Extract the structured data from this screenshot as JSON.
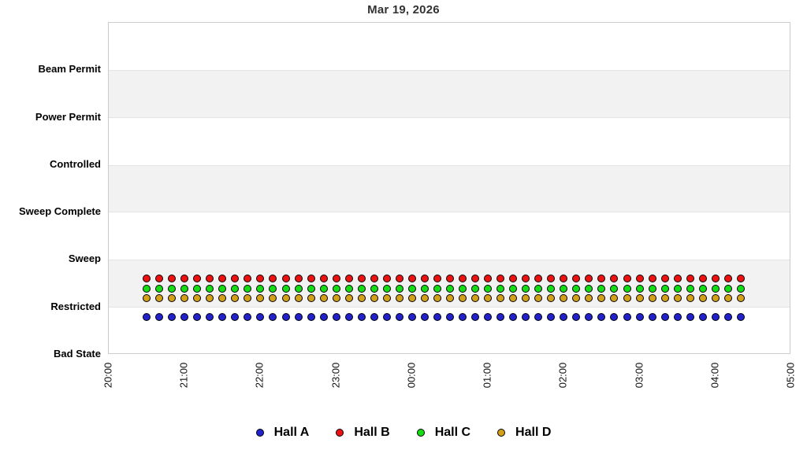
{
  "chart_data": {
    "type": "scatter",
    "title": "Mar 19, 2026",
    "x_axis": {
      "tick_labels": [
        "20:00",
        "21:00",
        "22:00",
        "23:00",
        "00:00",
        "01:00",
        "02:00",
        "03:00",
        "04:00",
        "05:00"
      ],
      "label_rotation_deg": -90
    },
    "y_axis": {
      "categories_bottom_up": [
        "Bad State",
        "Restricted",
        "Sweep",
        "Sweep Complete",
        "Controlled",
        "Power Permit",
        "Beam Permit"
      ]
    },
    "grid": {
      "alternating_bands": true,
      "band_color": "#f2f2f2",
      "border_color": "#cccccc"
    },
    "sampling": {
      "first_point": "20:30",
      "last_point": "04:20",
      "interval_minutes": 10,
      "points_per_series": 48
    },
    "series": [
      {
        "name": "Hall B",
        "color": "#ee1111",
        "value_all_points": "Restricted",
        "stack_slot": 0
      },
      {
        "name": "Hall C",
        "color": "#15dd15",
        "value_all_points": "Restricted",
        "stack_slot": 1
      },
      {
        "name": "Hall D",
        "color": "#d4a017",
        "value_all_points": "Restricted",
        "stack_slot": 2
      },
      {
        "name": "Hall A",
        "color": "#2222cc",
        "value_all_points": "Restricted",
        "stack_slot": 3
      }
    ],
    "legend": {
      "position": "bottom-center",
      "entries": [
        "Hall A",
        "Hall B",
        "Hall C",
        "Hall D"
      ]
    }
  }
}
